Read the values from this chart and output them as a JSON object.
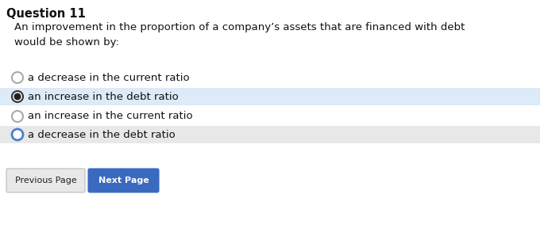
{
  "title": "Question 11",
  "question": "An improvement in the proportion of a company’s assets that are financed with debt\nwould be shown by:",
  "options": [
    "a decrease in the current ratio",
    "an increase in the debt ratio",
    "an increase in the current ratio",
    "a decrease in the debt ratio"
  ],
  "selected_index": 1,
  "option_bg_colors": [
    "#ffffff",
    "#ddeaf7",
    "#ffffff",
    "#e8e8e8"
  ],
  "bg_color": "#ffffff",
  "title_fontsize": 10.5,
  "question_fontsize": 9.5,
  "option_fontsize": 9.5,
  "btn_prev_label": "Previous Page",
  "btn_next_label": "Next Page",
  "btn_prev_color": "#e8e8e8",
  "btn_next_color": "#3a69c0",
  "btn_prev_text_color": "#222222",
  "btn_next_text_color": "#ffffff",
  "radio_unselected_color": "#aaaaaa",
  "radio_selected_fill": "#222222",
  "radio_last_color": "#4a7fd4"
}
